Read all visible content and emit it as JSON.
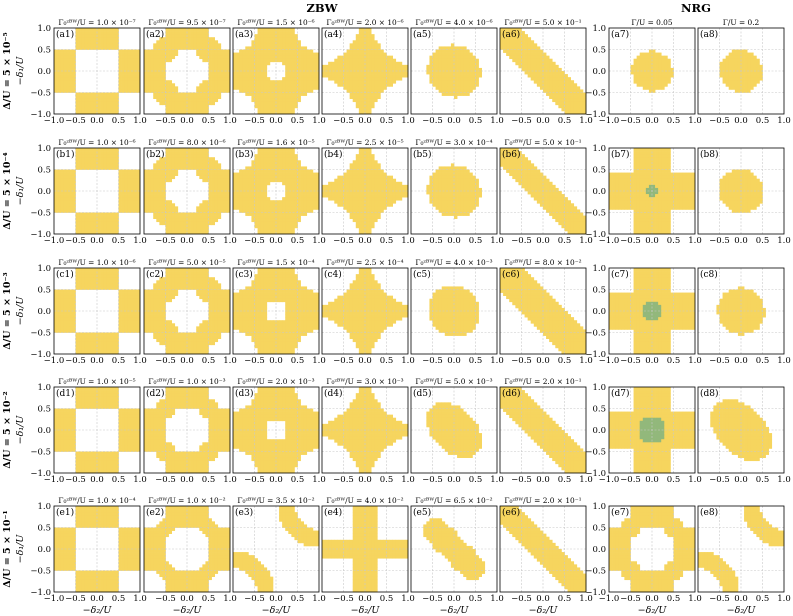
{
  "groups": {
    "zbw": "ZBW",
    "nrg": "NRG"
  },
  "axes": {
    "ylabel": "−δ₁/U",
    "xlabel": "−δ₂/U"
  },
  "rows": [
    {
      "label": "Δ/U = 5 × 10⁻⁵"
    },
    {
      "label": "Δ/U = 5 × 10⁻⁴"
    },
    {
      "label": "Δ/U = 5 × 10⁻³"
    },
    {
      "label": "Δ/U = 5 × 10⁻²"
    },
    {
      "label": "Δ/U = 5 × 10⁻¹"
    }
  ],
  "colors": {
    "yellow": "#f6d55e",
    "green": "#92b87b",
    "grid": "#c8c8c8"
  },
  "chart_data": {
    "type": "heatmap",
    "x_range": [
      -1.0,
      1.0
    ],
    "y_range": [
      -1.0,
      1.0
    ],
    "x_ticks": [
      "−1.0",
      "−0.5",
      "0.0",
      "0.5",
      "1.0"
    ],
    "y_ticks": [
      "1.0",
      "0.5",
      "0.0",
      "−0.5",
      "−1.0"
    ],
    "grid": true,
    "panels": [
      [
        {
          "label": "(a1)",
          "title": "Γ₀ᶻᴮᵂ/U = 1.0 × 10⁻⁷",
          "shape": "checker",
          "p": 0.5
        },
        {
          "label": "(a2)",
          "title": "Γ₀ᶻᴮᵂ/U = 9.5 × 10⁻⁷",
          "shape": "checker_round",
          "p": 0.3
        },
        {
          "label": "(a3)",
          "title": "Γ₀ᶻᴮᵂ/U = 1.5 × 10⁻⁶",
          "shape": "cross_hole",
          "p": 0.15
        },
        {
          "label": "(a4)",
          "title": "Γ₀ᶻᴮᵂ/U = 2.0 × 10⁻⁶",
          "shape": "star",
          "p": 0.12
        },
        {
          "label": "(a5)",
          "title": "Γ₀ᶻᴮᵂ/U = 4.0 × 10⁻⁶",
          "shape": "blob",
          "p": 0.62
        },
        {
          "label": "(a6)",
          "title": "Γ₀ᶻᴮᵂ/U = 5.0 × 10⁻¹",
          "shape": "diagonal",
          "p": 0.32
        },
        {
          "label": "(a7)",
          "title": "Γ/U = 0.05",
          "shape": "blob",
          "p": 0.48
        },
        {
          "label": "(a8)",
          "title": "Γ/U = 0.2",
          "shape": "blob",
          "p": 0.5
        }
      ],
      [
        {
          "label": "(b1)",
          "title": "Γ₀ᶻᴮᵂ/U = 1.0 × 10⁻⁶",
          "shape": "checker",
          "p": 0.5
        },
        {
          "label": "(b2)",
          "title": "Γ₀ᶻᴮᵂ/U = 8.0 × 10⁻⁶",
          "shape": "checker_round",
          "p": 0.3
        },
        {
          "label": "(b3)",
          "title": "Γ₀ᶻᴮᵂ/U = 1.6 × 10⁻⁵",
          "shape": "cross_hole",
          "p": 0.15
        },
        {
          "label": "(b4)",
          "title": "Γ₀ᶻᴮᵂ/U = 2.5 × 10⁻⁵",
          "shape": "star",
          "p": 0.12
        },
        {
          "label": "(b5)",
          "title": "Γ₀ᶻᴮᵂ/U = 3.0 × 10⁻⁴",
          "shape": "blob",
          "p": 0.62
        },
        {
          "label": "(b6)",
          "title": "Γ₀ᶻᴮᵂ/U = 5.0 × 10⁻¹",
          "shape": "diagonal",
          "p": 0.3
        },
        {
          "label": "(b7)",
          "title": "",
          "shape": "cross_green",
          "p": 0.2
        },
        {
          "label": "(b8)",
          "title": "",
          "shape": "blob",
          "p": 0.52
        }
      ],
      [
        {
          "label": "(c1)",
          "title": "Γ₀ᶻᴮᵂ/U = 1.0 × 10⁻⁶",
          "shape": "checker",
          "p": 0.5
        },
        {
          "label": "(c2)",
          "title": "Γ₀ᶻᴮᵂ/U = 5.0 × 10⁻⁵",
          "shape": "checker_round",
          "p": 0.3
        },
        {
          "label": "(c3)",
          "title": "Γ₀ᶻᴮᵂ/U = 1.5 × 10⁻⁴",
          "shape": "cross_hole",
          "p": 0.18
        },
        {
          "label": "(c4)",
          "title": "Γ₀ᶻᴮᵂ/U = 2.5 × 10⁻⁴",
          "shape": "star",
          "p": 0.1
        },
        {
          "label": "(c5)",
          "title": "Γ₀ᶻᴮᵂ/U = 4.0 × 10⁻³",
          "shape": "blob",
          "p": 0.6
        },
        {
          "label": "(c6)",
          "title": "Γ₀ᶻᴮᵂ/U = 8.0 × 10⁻²",
          "shape": "diagonal",
          "p": 0.4
        },
        {
          "label": "(c7)",
          "title": "",
          "shape": "cross_green",
          "p": 0.35
        },
        {
          "label": "(c8)",
          "title": "",
          "shape": "blob",
          "p": 0.55
        }
      ],
      [
        {
          "label": "(d1)",
          "title": "Γ₀ᶻᴮᵂ/U = 1.0 × 10⁻⁵",
          "shape": "checker",
          "p": 0.5
        },
        {
          "label": "(d2)",
          "title": "Γ₀ᶻᴮᵂ/U = 1.0 × 10⁻³",
          "shape": "checker_round",
          "p": 0.25
        },
        {
          "label": "(d3)",
          "title": "Γ₀ᶻᴮᵂ/U = 2.0 × 10⁻³",
          "shape": "cross_hole",
          "p": 0.2
        },
        {
          "label": "(d4)",
          "title": "Γ₀ᶻᴮᵂ/U = 3.0 × 10⁻³",
          "shape": "star",
          "p": 0.15
        },
        {
          "label": "(d5)",
          "title": "Γ₀ᶻᴮᵂ/U = 5.0 × 10⁻³",
          "shape": "tilted_blob",
          "p": 0.5
        },
        {
          "label": "(d6)",
          "title": "Γ₀ᶻᴮᵂ/U = 2.0 × 10⁻¹",
          "shape": "diagonal",
          "p": 0.35
        },
        {
          "label": "(d7)",
          "title": "",
          "shape": "cross_green",
          "p": 0.45
        },
        {
          "label": "(d8)",
          "title": "",
          "shape": "tilted_blob",
          "p": 0.55
        }
      ],
      [
        {
          "label": "(e1)",
          "title": "Γ₀ᶻᴮᵂ/U = 1.0 × 10⁻⁴",
          "shape": "checker",
          "p": 0.5
        },
        {
          "label": "(e2)",
          "title": "Γ₀ᶻᴮᵂ/U = 1.0 × 10⁻²",
          "shape": "checker_round",
          "p": 0.2
        },
        {
          "label": "(e3)",
          "title": "Γ₀ᶻᴮᵂ/U = 3.5 × 10⁻²",
          "shape": "arcs",
          "p": 0.35
        },
        {
          "label": "(e4)",
          "title": "Γ₀ᶻᴮᵂ/U = 4.0 × 10⁻²",
          "shape": "cross_band",
          "p": 0.3
        },
        {
          "label": "(e5)",
          "title": "Γ₀ᶻᴮᵂ/U = 6.5 × 10⁻²",
          "shape": "peanut",
          "p": 0.5
        },
        {
          "label": "(e6)",
          "title": "Γ₀ᶻᴮᵂ/U = 2.0 × 10⁻¹",
          "shape": "diagonal",
          "p": 0.3
        },
        {
          "label": "(e7)",
          "title": "",
          "shape": "checker_round",
          "p": 0.25
        },
        {
          "label": "(e8)",
          "title": "",
          "shape": "arcs",
          "p": 0.3
        }
      ]
    ]
  }
}
